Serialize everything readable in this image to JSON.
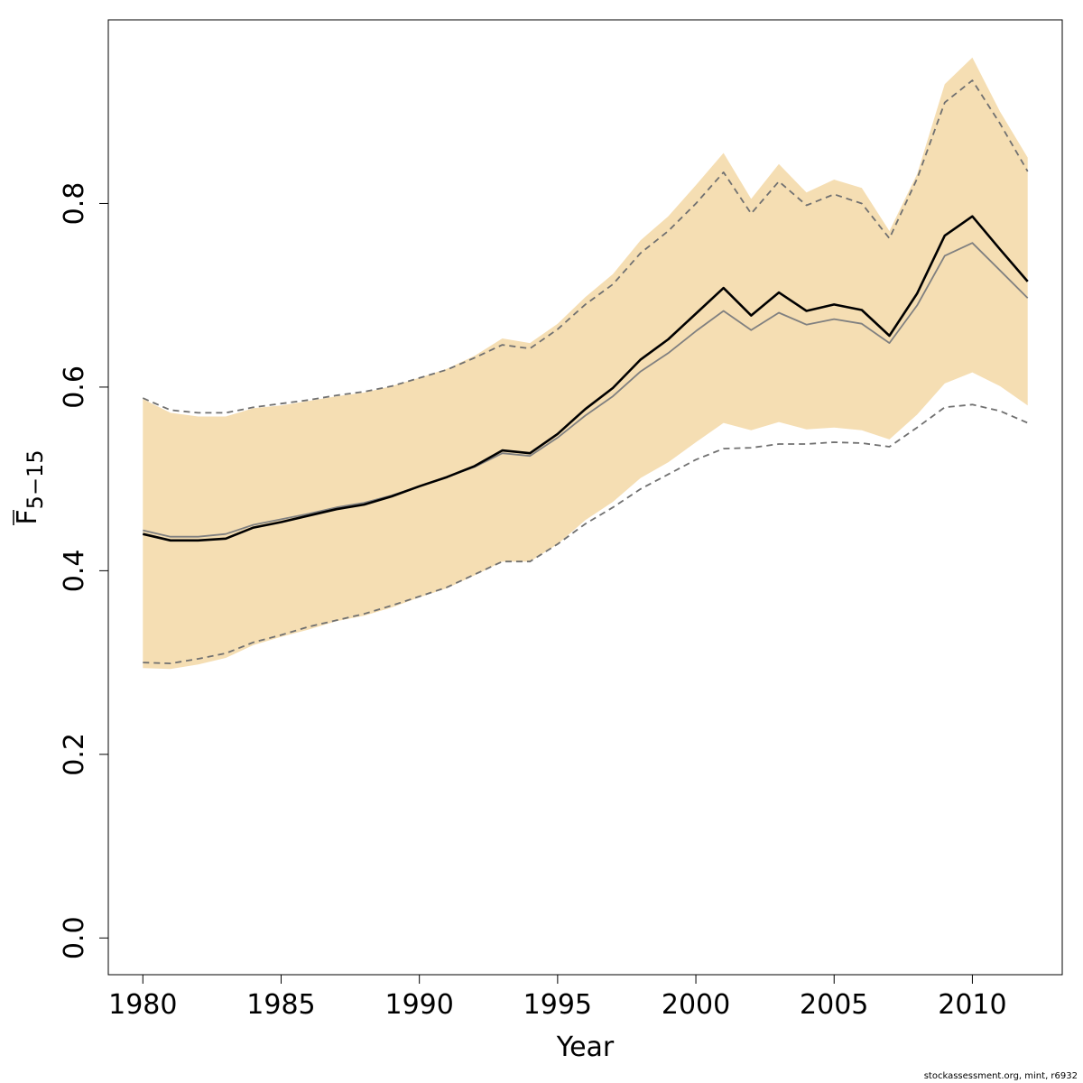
{
  "chart_data": {
    "type": "line",
    "xlabel": "Year",
    "ylabel": "F",
    "ylabel_sub": "5−15",
    "xlim": [
      1978.75,
      2013.25
    ],
    "ylim": [
      -0.04,
      1.0
    ],
    "x_ticks": [
      1980,
      1985,
      1990,
      1995,
      2000,
      2005,
      2010
    ],
    "y_ticks": [
      0.0,
      0.2,
      0.4,
      0.6,
      0.8
    ],
    "y_tick_labels": [
      "0.0",
      "0.2",
      "0.4",
      "0.6",
      "0.8"
    ],
    "grid": false,
    "x": [
      1980,
      1981,
      1982,
      1983,
      1984,
      1985,
      1986,
      1987,
      1988,
      1989,
      1990,
      1991,
      1992,
      1993,
      1994,
      1995,
      1996,
      1997,
      1998,
      1999,
      2000,
      2001,
      2002,
      2003,
      2004,
      2005,
      2006,
      2007,
      2008,
      2009,
      2010,
      2011,
      2012
    ],
    "band_color": "#f5deb3",
    "band_upper": [
      0.587,
      0.572,
      0.568,
      0.568,
      0.577,
      0.58,
      0.585,
      0.59,
      0.594,
      0.601,
      0.61,
      0.62,
      0.634,
      0.653,
      0.648,
      0.669,
      0.698,
      0.723,
      0.76,
      0.786,
      0.82,
      0.855,
      0.805,
      0.843,
      0.812,
      0.826,
      0.817,
      0.77,
      0.832,
      0.93,
      0.959,
      0.9,
      0.85
    ],
    "band_lower": [
      0.294,
      0.293,
      0.298,
      0.305,
      0.319,
      0.328,
      0.336,
      0.345,
      0.351,
      0.36,
      0.371,
      0.381,
      0.395,
      0.41,
      0.41,
      0.429,
      0.455,
      0.475,
      0.501,
      0.518,
      0.54,
      0.561,
      0.553,
      0.562,
      0.554,
      0.556,
      0.553,
      0.543,
      0.57,
      0.604,
      0.616,
      0.601,
      0.58
    ],
    "series": [
      {
        "values": [
          0.44,
          0.433,
          0.433,
          0.435,
          0.447,
          0.453,
          0.46,
          0.467,
          0.472,
          0.481,
          0.492,
          0.502,
          0.514,
          0.531,
          0.528,
          0.549,
          0.576,
          0.599,
          0.63,
          0.652,
          0.68,
          0.708,
          0.678,
          0.703,
          0.683,
          0.69,
          0.684,
          0.656,
          0.702,
          0.765,
          0.786,
          0.75,
          0.715
        ],
        "color": "#000000",
        "dash": "",
        "width": 2.6
      },
      {
        "values": [
          0.444,
          0.437,
          0.437,
          0.44,
          0.45,
          0.456,
          0.462,
          0.469,
          0.474,
          0.482,
          0.492,
          0.502,
          0.513,
          0.528,
          0.525,
          0.545,
          0.569,
          0.59,
          0.617,
          0.637,
          0.661,
          0.683,
          0.662,
          0.681,
          0.668,
          0.674,
          0.669,
          0.648,
          0.689,
          0.743,
          0.757,
          0.727,
          0.697
        ],
        "color": "#808080",
        "dash": "",
        "width": 1.8
      },
      {
        "values": [
          0.588,
          0.575,
          0.572,
          0.572,
          0.578,
          0.582,
          0.586,
          0.591,
          0.595,
          0.601,
          0.61,
          0.619,
          0.632,
          0.646,
          0.642,
          0.663,
          0.69,
          0.712,
          0.746,
          0.77,
          0.8,
          0.834,
          0.789,
          0.824,
          0.798,
          0.81,
          0.8,
          0.762,
          0.827,
          0.91,
          0.934,
          0.887,
          0.835
        ],
        "color": "#707070",
        "dash": "7,5",
        "width": 1.8
      },
      {
        "values": [
          0.3,
          0.299,
          0.304,
          0.31,
          0.322,
          0.33,
          0.339,
          0.346,
          0.353,
          0.362,
          0.372,
          0.382,
          0.396,
          0.41,
          0.41,
          0.429,
          0.451,
          0.469,
          0.489,
          0.505,
          0.521,
          0.533,
          0.534,
          0.538,
          0.538,
          0.54,
          0.539,
          0.535,
          0.556,
          0.578,
          0.581,
          0.574,
          0.561
        ],
        "color": "#707070",
        "dash": "7,5",
        "width": 1.8
      }
    ]
  },
  "footer": "stockassessment.org, mint, r6932"
}
